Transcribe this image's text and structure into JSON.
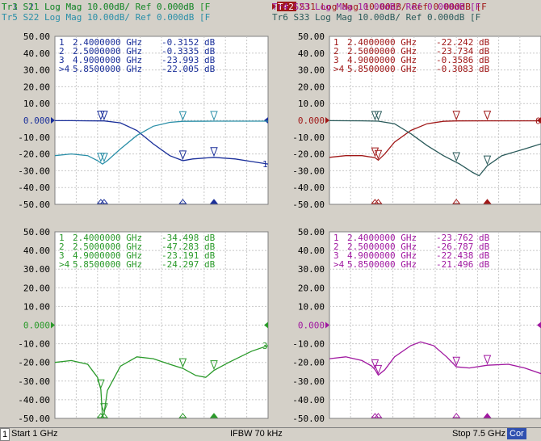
{
  "panes": [
    {
      "id": "p1",
      "headers": [
        {
          "text": "Tr1 S21 Log Mag 10.00dB/ Ref 0.000dB [F",
          "color": "#1a2f9a"
        },
        {
          "text": "Tr5 S22 Log Mag 10.00dB/ Ref 0.000dB [F",
          "color": "#2a8fa8"
        }
      ],
      "active_tag": "",
      "marker_color": "#1a2f9a",
      "markers": [
        {
          "num": "1",
          "freq": "2.4000000 GHz",
          "value": "-0.3152 dB"
        },
        {
          "num": "2",
          "freq": "2.5000000 GHz",
          "value": "-0.3335 dB"
        },
        {
          "num": "3",
          "freq": "4.9000000 GHz",
          "value": "-23.993 dB"
        },
        {
          "num": ">4",
          "freq": "5.8500000 GHz",
          "value": "-22.005 dB"
        }
      ],
      "ref_color": "#1a2f9a",
      "end_label": "1",
      "traces": [
        {
          "name": "S21",
          "color": "#1a2f9a",
          "points": [
            [
              1,
              -0.2
            ],
            [
              1.5,
              -0.2
            ],
            [
              2.0,
              -0.3
            ],
            [
              2.4,
              -0.32
            ],
            [
              2.5,
              -0.33
            ],
            [
              3.0,
              -1.5
            ],
            [
              3.5,
              -6
            ],
            [
              4.0,
              -14
            ],
            [
              4.5,
              -21
            ],
            [
              4.9,
              -24
            ],
            [
              5.2,
              -23
            ],
            [
              5.85,
              -22
            ],
            [
              6.5,
              -23
            ],
            [
              7.0,
              -24.5
            ],
            [
              7.5,
              -26
            ]
          ]
        },
        {
          "name": "S22",
          "color": "#2a8fa8",
          "points": [
            [
              1,
              -21
            ],
            [
              1.5,
              -20
            ],
            [
              2.0,
              -21
            ],
            [
              2.3,
              -24
            ],
            [
              2.45,
              -26
            ],
            [
              2.6,
              -24
            ],
            [
              3.0,
              -17
            ],
            [
              3.5,
              -9
            ],
            [
              4.0,
              -3.5
            ],
            [
              4.5,
              -1.2
            ],
            [
              4.9,
              -0.6
            ],
            [
              5.85,
              -0.5
            ],
            [
              7.5,
              -0.5
            ]
          ]
        }
      ]
    },
    {
      "id": "p2",
      "headers": [
        {
          "text": "S31 Log Mag 10.00dB/ Ref 0.000dB [F",
          "color": "#a01818"
        },
        {
          "text": "Tr6 S33 Log Mag 10.00dB/ Ref 0.000dB [F",
          "color": "#2a5a5a"
        }
      ],
      "active_tag": "Tr2",
      "marker_color": "#a01818",
      "markers": [
        {
          "num": "1",
          "freq": "2.4000000 GHz",
          "value": "-22.242 dB"
        },
        {
          "num": "2",
          "freq": "2.5000000 GHz",
          "value": "-23.734 dB"
        },
        {
          "num": "3",
          "freq": "4.9000000 GHz",
          "value": "-0.3586 dB"
        },
        {
          "num": ">4",
          "freq": "5.8500000 GHz",
          "value": "-0.3083 dB"
        }
      ],
      "ref_color": "#a01818",
      "end_label": "6",
      "traces": [
        {
          "name": "S31",
          "color": "#a01818",
          "points": [
            [
              1,
              -22
            ],
            [
              1.5,
              -21
            ],
            [
              2.0,
              -21
            ],
            [
              2.4,
              -22.2
            ],
            [
              2.5,
              -23.7
            ],
            [
              2.7,
              -20
            ],
            [
              3.0,
              -13
            ],
            [
              3.5,
              -6
            ],
            [
              4.0,
              -2
            ],
            [
              4.5,
              -0.6
            ],
            [
              4.9,
              -0.36
            ],
            [
              5.85,
              -0.31
            ],
            [
              7.5,
              -0.3
            ]
          ]
        },
        {
          "name": "S33",
          "color": "#2a5a5a",
          "points": [
            [
              1,
              -0.2
            ],
            [
              2.0,
              -0.3
            ],
            [
              2.5,
              -0.5
            ],
            [
              3.0,
              -2
            ],
            [
              3.5,
              -8
            ],
            [
              4.0,
              -15
            ],
            [
              4.5,
              -21
            ],
            [
              5.0,
              -26
            ],
            [
              5.4,
              -31
            ],
            [
              5.6,
              -33
            ],
            [
              5.85,
              -27
            ],
            [
              6.3,
              -21
            ],
            [
              7.0,
              -17
            ],
            [
              7.5,
              -14
            ]
          ]
        }
      ]
    },
    {
      "id": "p3",
      "headers": [
        {
          "text": "Tr3 S11 Log Mag 10.00dB/ Ref 0.000dB [F",
          "color": "#2a9a2a"
        }
      ],
      "active_tag": "",
      "marker_color": "#2a9a2a",
      "markers": [
        {
          "num": "1",
          "freq": "2.4000000 GHz",
          "value": "-34.498 dB"
        },
        {
          "num": "2",
          "freq": "2.5000000 GHz",
          "value": "-47.283 dB"
        },
        {
          "num": "3",
          "freq": "4.9000000 GHz",
          "value": "-23.191 dB"
        },
        {
          "num": ">4",
          "freq": "5.8500000 GHz",
          "value": "-24.297 dB"
        }
      ],
      "ref_color": "#2a9a2a",
      "end_label": "3",
      "traces": [
        {
          "name": "S11",
          "color": "#2a9a2a",
          "points": [
            [
              1,
              -20
            ],
            [
              1.5,
              -19
            ],
            [
              2.0,
              -21
            ],
            [
              2.3,
              -28
            ],
            [
              2.4,
              -34.5
            ],
            [
              2.45,
              -49
            ],
            [
              2.5,
              -47.3
            ],
            [
              2.6,
              -35
            ],
            [
              3.0,
              -22
            ],
            [
              3.5,
              -17
            ],
            [
              4.0,
              -18
            ],
            [
              4.5,
              -21
            ],
            [
              4.9,
              -23.2
            ],
            [
              5.3,
              -27
            ],
            [
              5.6,
              -28
            ],
            [
              5.85,
              -24.3
            ],
            [
              6.3,
              -20
            ],
            [
              7.0,
              -14
            ],
            [
              7.5,
              -11
            ]
          ]
        }
      ]
    },
    {
      "id": "p4",
      "headers": [
        {
          "text": "Tr4 S23 Log Mag 10.00dB/ Ref 0.000dB [F",
          "color": "#a018a0"
        }
      ],
      "active_tag": "",
      "marker_color": "#a018a0",
      "markers": [
        {
          "num": "1",
          "freq": "2.4000000 GHz",
          "value": "-23.762 dB"
        },
        {
          "num": "2",
          "freq": "2.5000000 GHz",
          "value": "-26.787 dB"
        },
        {
          "num": "3",
          "freq": "4.9000000 GHz",
          "value": "-22.438 dB"
        },
        {
          "num": ">4",
          "freq": "5.8500000 GHz",
          "value": "-21.496 dB"
        }
      ],
      "ref_color": "#a018a0",
      "end_label": "",
      "traces": [
        {
          "name": "S23",
          "color": "#a018a0",
          "points": [
            [
              1,
              -18
            ],
            [
              1.5,
              -17
            ],
            [
              2.0,
              -19
            ],
            [
              2.3,
              -22
            ],
            [
              2.4,
              -23.8
            ],
            [
              2.5,
              -26.8
            ],
            [
              2.7,
              -24
            ],
            [
              3.0,
              -17
            ],
            [
              3.5,
              -11
            ],
            [
              3.8,
              -9
            ],
            [
              4.2,
              -11
            ],
            [
              4.6,
              -17
            ],
            [
              4.9,
              -22.4
            ],
            [
              5.3,
              -23
            ],
            [
              5.85,
              -21.5
            ],
            [
              6.5,
              -21
            ],
            [
              7.0,
              -23
            ],
            [
              7.5,
              -26
            ]
          ]
        }
      ]
    }
  ],
  "y_tick_labels": [
    "50.00",
    "40.00",
    "30.00",
    "20.00",
    "10.00",
    "0.000",
    "-10.00",
    "-20.00",
    "-30.00",
    "-40.00",
    "-50.00"
  ],
  "x_range": [
    1,
    7.5
  ],
  "y_range": [
    -50,
    50
  ],
  "status": {
    "channel": "1",
    "start": "Start 1 GHz",
    "ifbw": "IFBW 70 kHz",
    "stop": "Stop 7.5 GHz",
    "cor": "Cor"
  }
}
